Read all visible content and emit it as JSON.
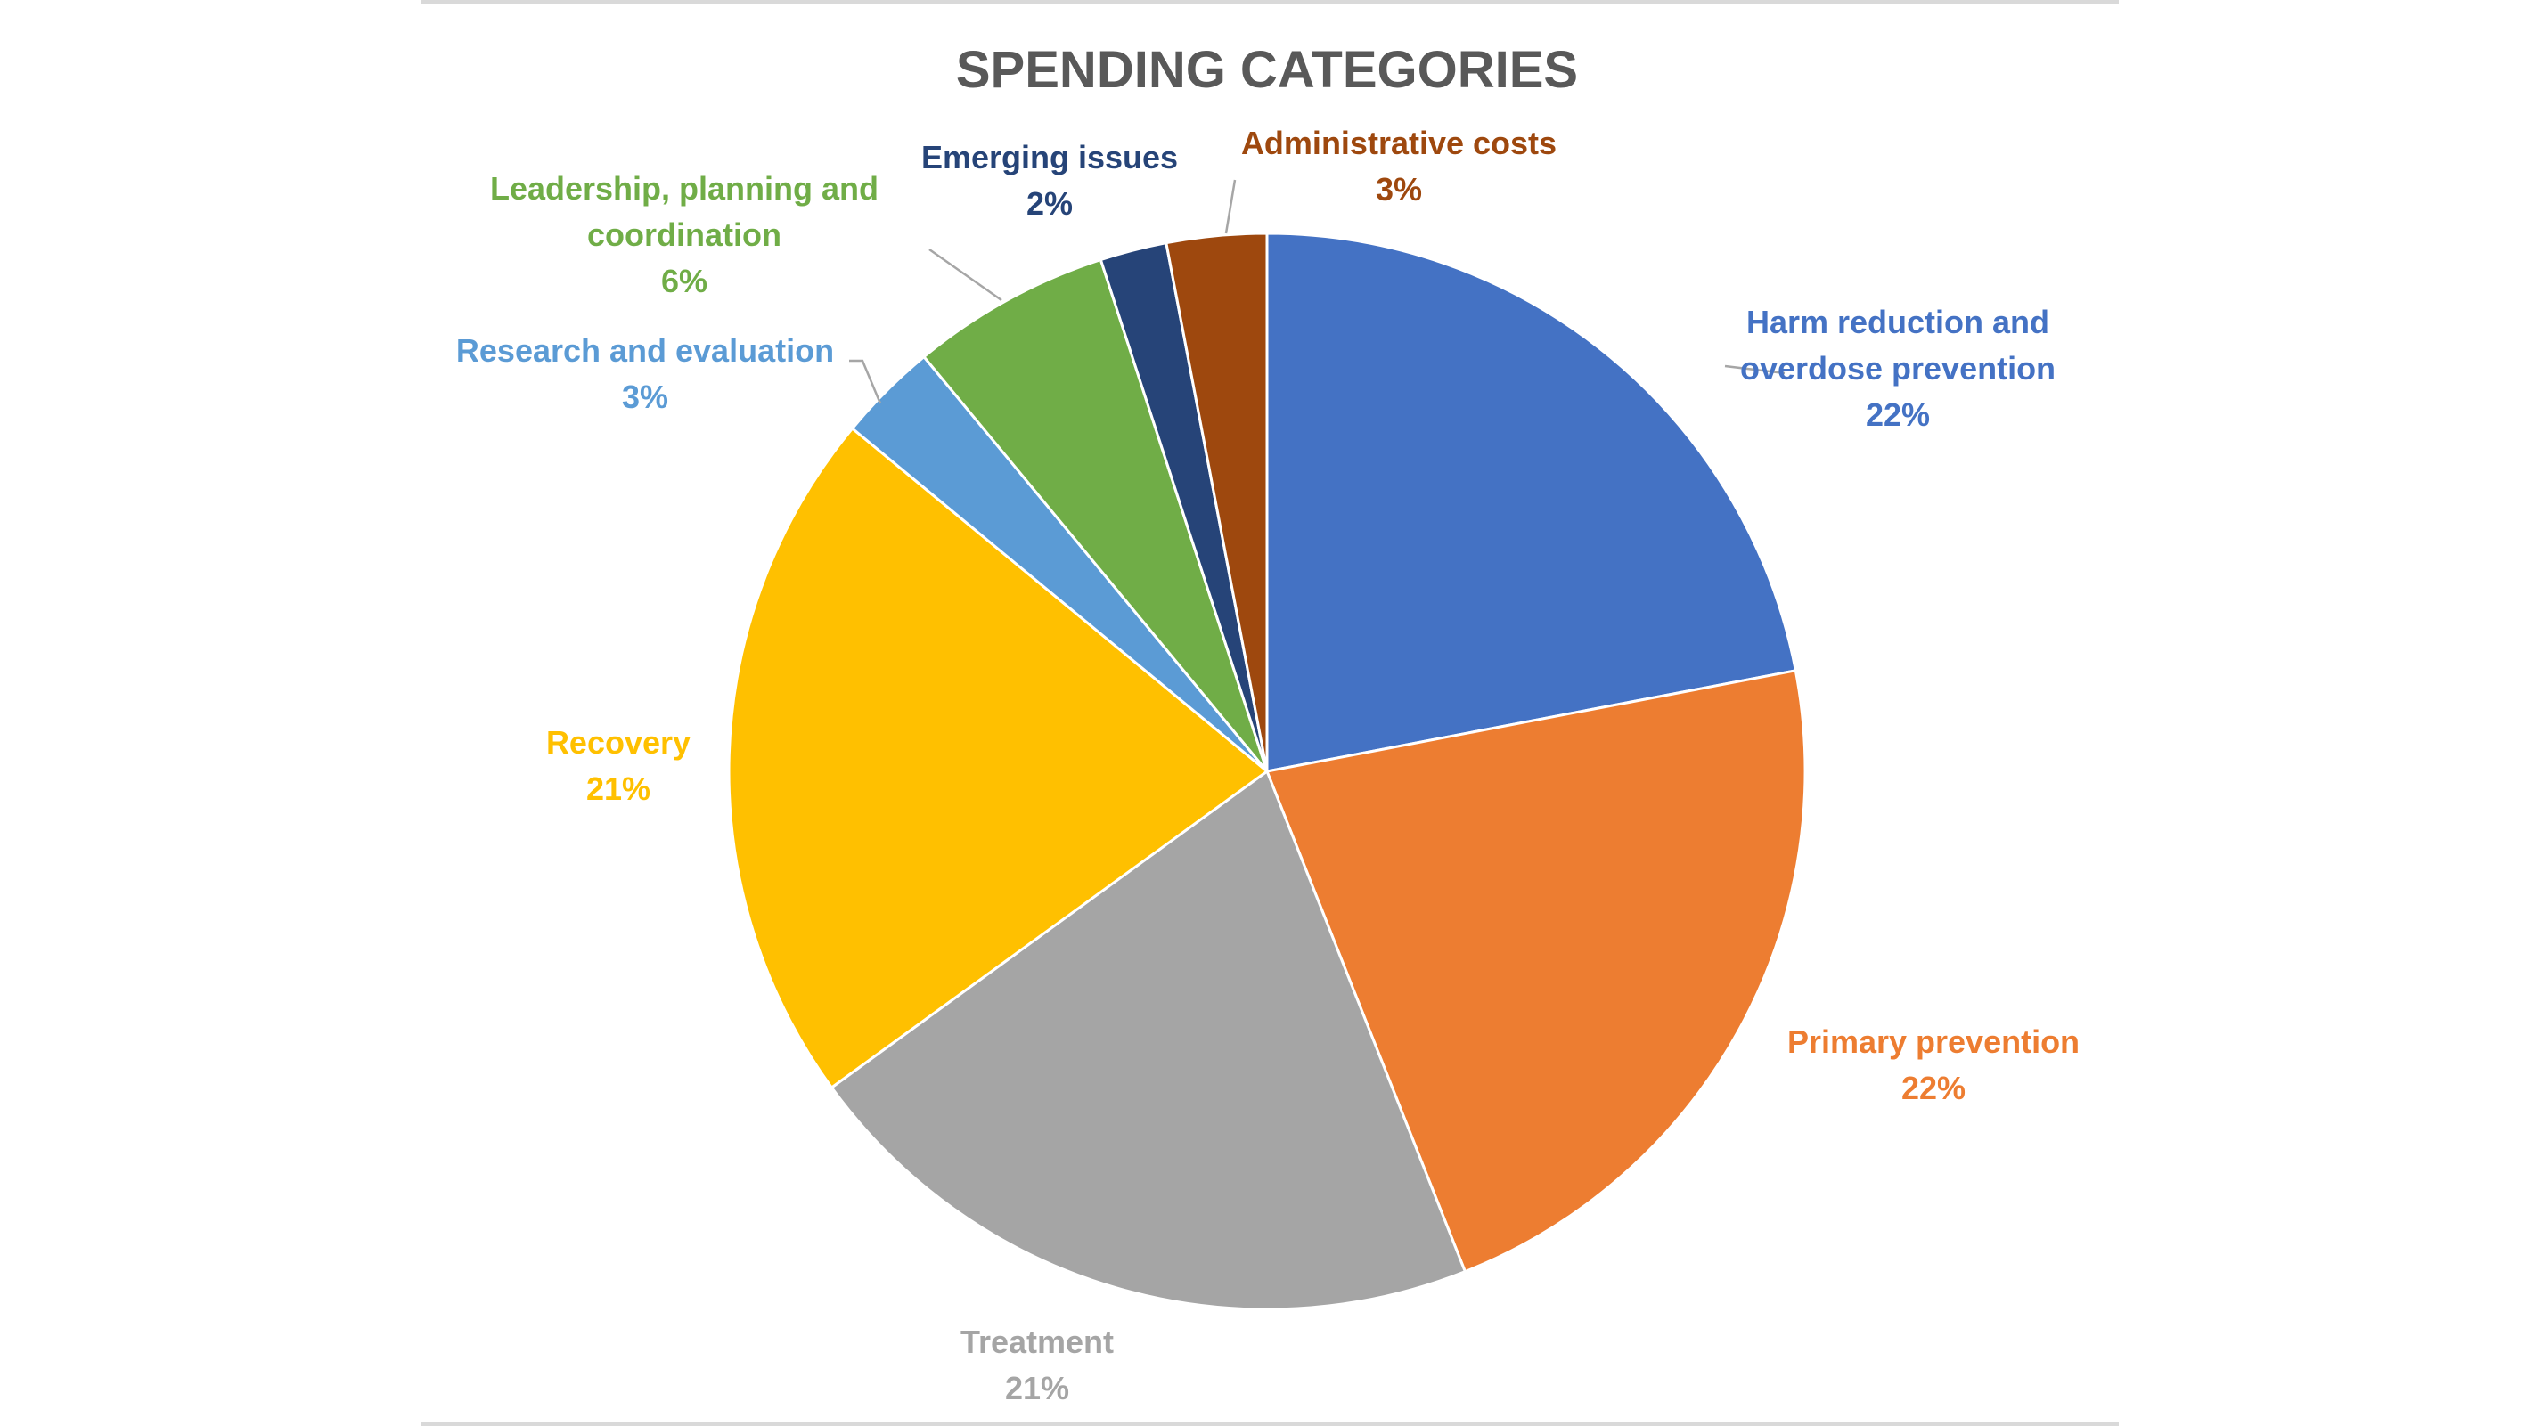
{
  "chart_data": {
    "type": "pie",
    "title": "SPENDING CATEGORIES",
    "slices": [
      {
        "label_lines": [
          "Harm reduction and",
          "overdose prevention"
        ],
        "value_text": "22%",
        "value": 22,
        "color": "#4472C4"
      },
      {
        "label_lines": [
          "Primary prevention"
        ],
        "value_text": "22%",
        "value": 22,
        "color": "#ED7D31"
      },
      {
        "label_lines": [
          "Treatment"
        ],
        "value_text": "21%",
        "value": 21,
        "color": "#A5A5A5"
      },
      {
        "label_lines": [
          "Recovery"
        ],
        "value_text": "21%",
        "value": 21,
        "color": "#FFC000"
      },
      {
        "label_lines": [
          "Research and evaluation"
        ],
        "value_text": "3%",
        "value": 3,
        "color": "#5B9BD5"
      },
      {
        "label_lines": [
          "Leadership, planning and",
          "coordination"
        ],
        "value_text": "6%",
        "value": 6,
        "color": "#70AD47"
      },
      {
        "label_lines": [
          "Emerging issues"
        ],
        "value_text": "2%",
        "value": 2,
        "color": "#264478"
      },
      {
        "label_lines": [
          "Administrative costs"
        ],
        "value_text": "3%",
        "value": 3,
        "color": "#9E480E"
      }
    ],
    "legend": "none",
    "data_labels": "outside"
  }
}
